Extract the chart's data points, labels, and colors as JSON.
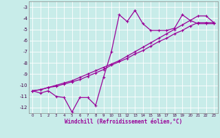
{
  "xlabel": "Windchill (Refroidissement éolien,°C)",
  "background_color": "#c8ece9",
  "grid_color": "#aacccc",
  "line_color": "#990099",
  "x_values": [
    0,
    1,
    2,
    3,
    4,
    5,
    6,
    7,
    8,
    9,
    10,
    11,
    12,
    13,
    14,
    15,
    16,
    17,
    18,
    19,
    20,
    21,
    22,
    23
  ],
  "line1": [
    -10.5,
    -10.7,
    -10.5,
    -11.0,
    -11.1,
    -12.4,
    -11.1,
    -11.1,
    -11.8,
    -9.3,
    -7.0,
    -3.7,
    -4.3,
    -3.3,
    -4.5,
    -5.1,
    -5.1,
    -5.1,
    -4.9,
    -3.7,
    -4.2,
    -4.5,
    -4.5,
    -4.5
  ],
  "line2": [
    -10.5,
    -10.4,
    -10.2,
    -10.1,
    -9.9,
    -9.7,
    -9.5,
    -9.2,
    -8.9,
    -8.6,
    -8.2,
    -7.9,
    -7.6,
    -7.2,
    -6.9,
    -6.5,
    -6.1,
    -5.8,
    -5.4,
    -5.1,
    -4.7,
    -4.4,
    -4.4,
    -4.4
  ],
  "line3": [
    -10.5,
    -10.4,
    -10.2,
    -10.0,
    -9.8,
    -9.6,
    -9.3,
    -9.0,
    -8.7,
    -8.4,
    -8.1,
    -7.8,
    -7.4,
    -7.0,
    -6.6,
    -6.2,
    -5.8,
    -5.4,
    -5.0,
    -4.6,
    -4.2,
    -3.8,
    -3.8,
    -4.4
  ],
  "ylim": [
    -12.5,
    -2.5
  ],
  "xlim": [
    -0.5,
    23.5
  ],
  "yticks": [
    -3,
    -4,
    -5,
    -6,
    -7,
    -8,
    -9,
    -10,
    -11,
    -12
  ],
  "xticks": [
    0,
    1,
    2,
    3,
    4,
    5,
    6,
    7,
    8,
    9,
    10,
    11,
    12,
    13,
    14,
    15,
    16,
    17,
    18,
    19,
    20,
    21,
    22,
    23
  ]
}
